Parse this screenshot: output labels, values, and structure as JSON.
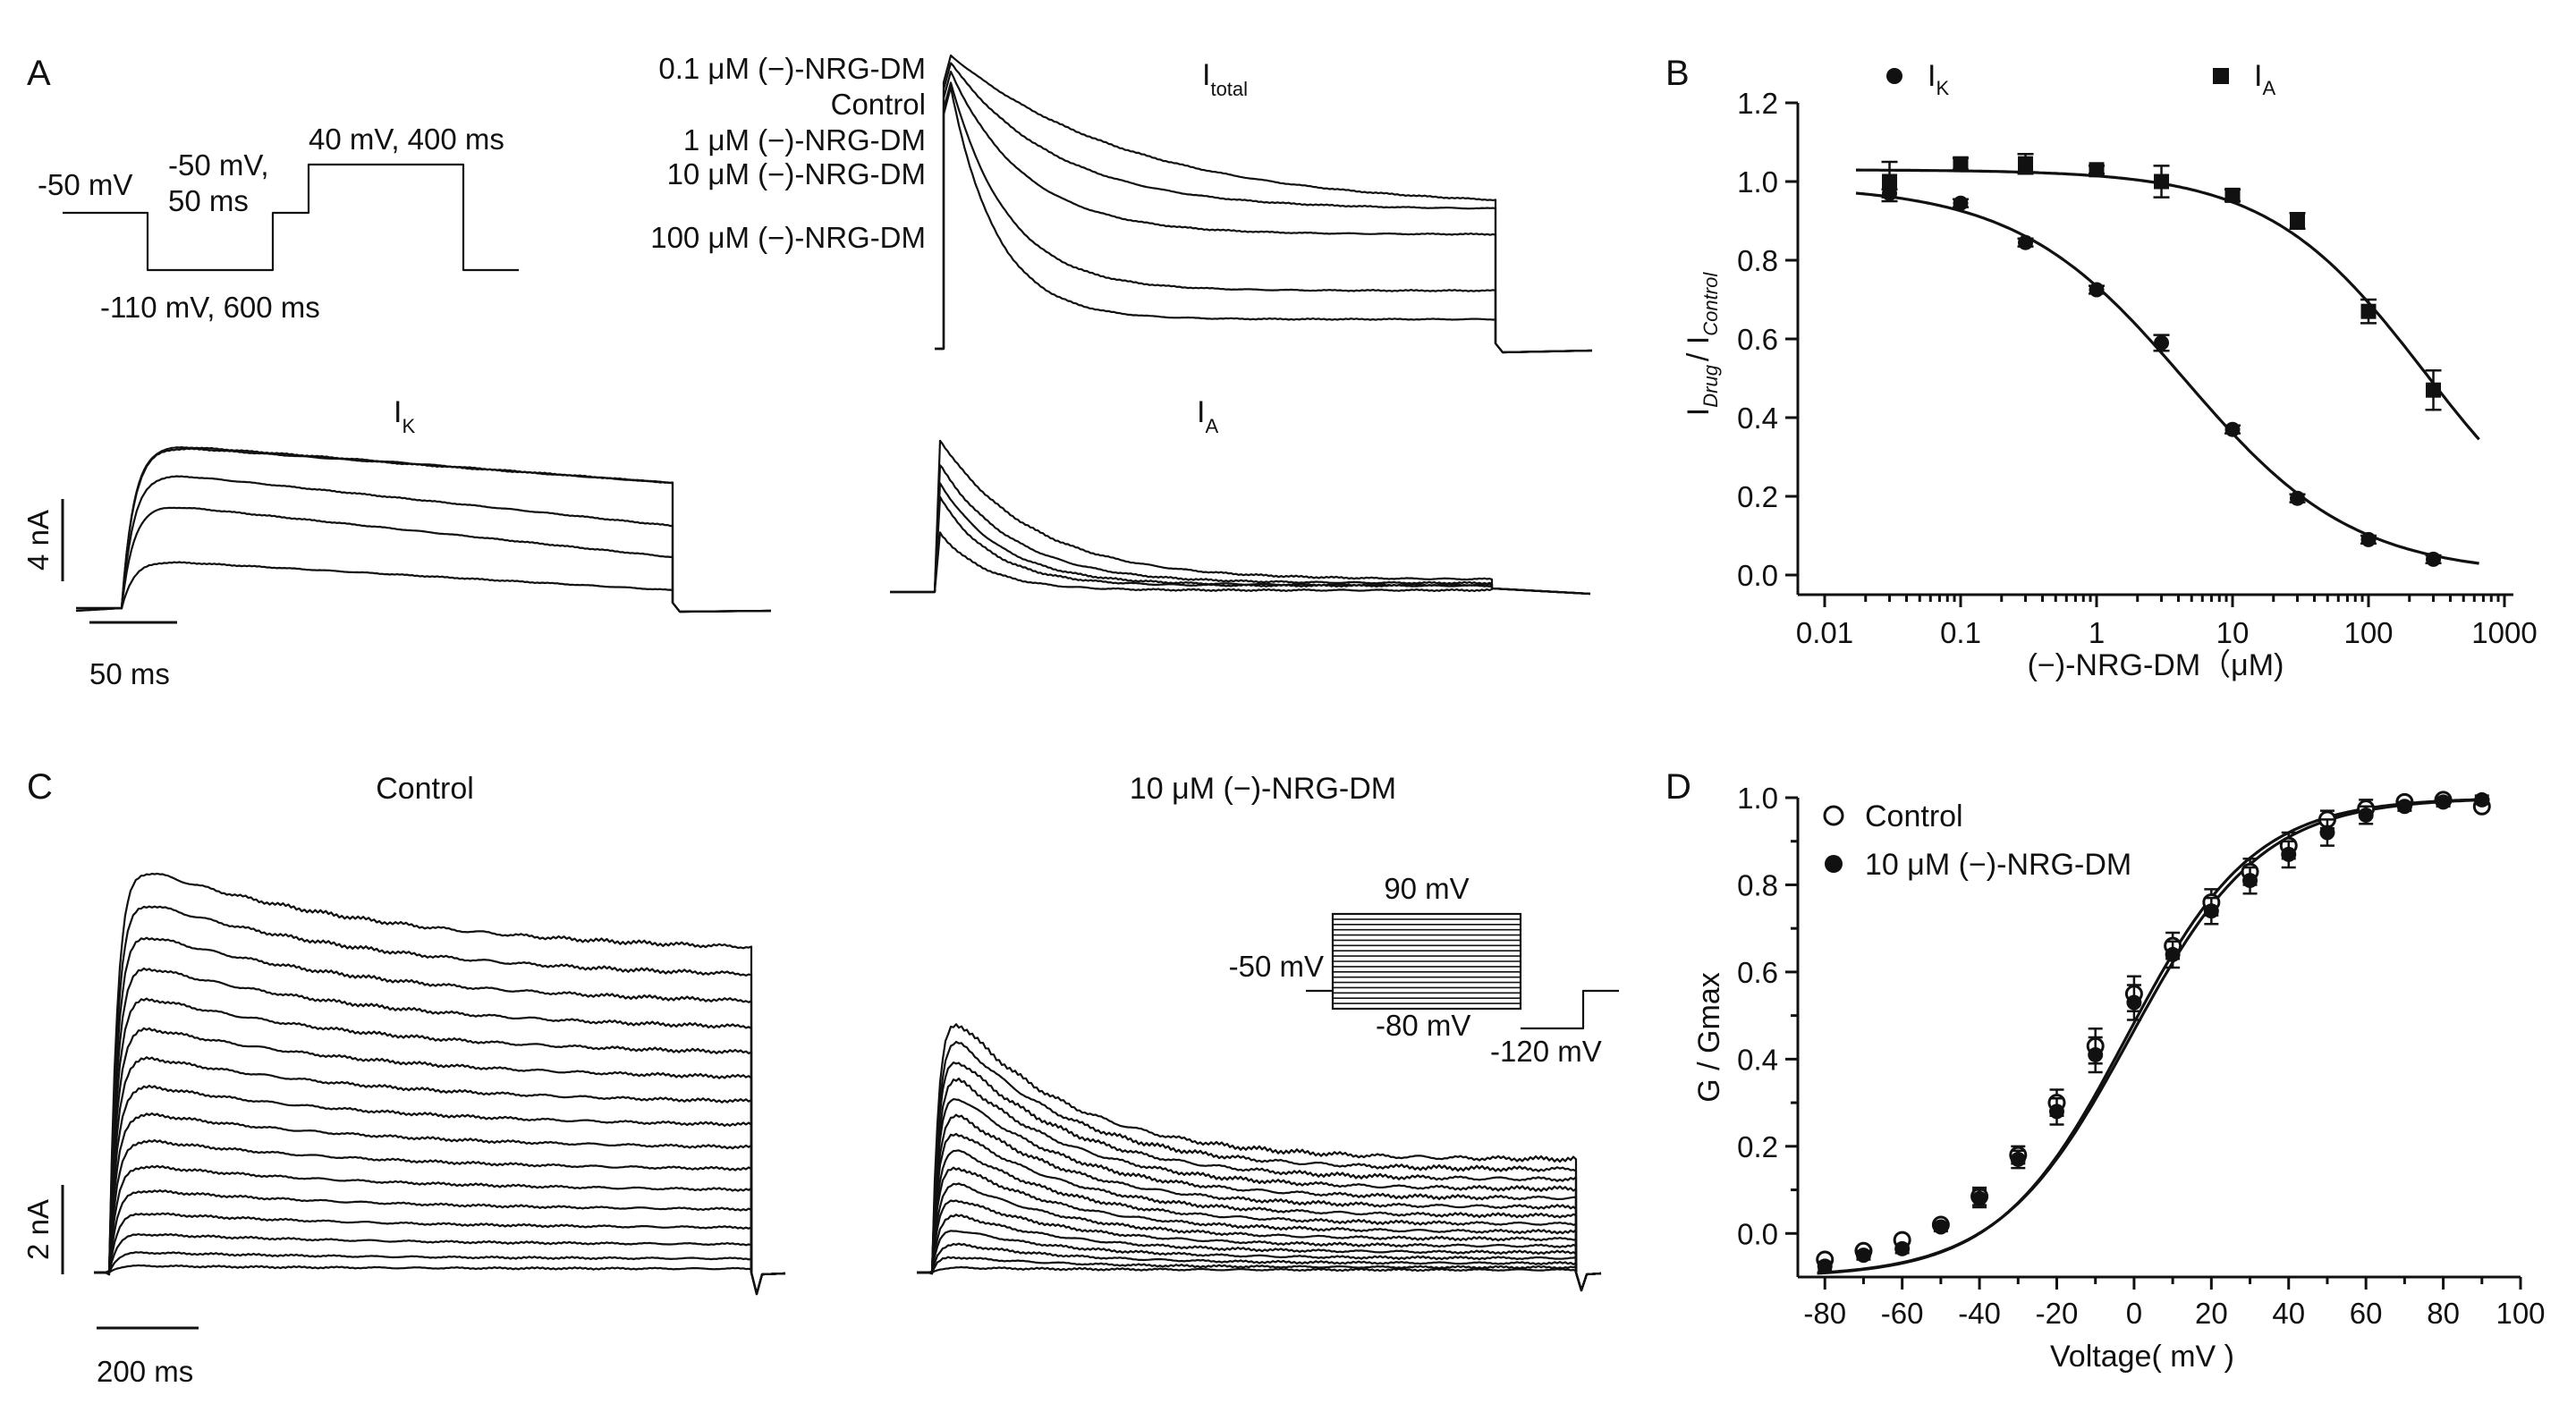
{
  "figure": {
    "panels": {
      "a": "A",
      "b": "B",
      "c": "C",
      "d": "D"
    },
    "panel_a": {
      "protocol": {
        "hold_label": "-50 mV",
        "pre_label_line1": "-50 mV,",
        "pre_label_line2": "50 ms",
        "test_label": "40 mV,  400 ms",
        "hyper_label": "-110 mV, 600 ms"
      },
      "itotal_title": {
        "main": "I",
        "sub": "total"
      },
      "ik_title": {
        "main": "I",
        "sub": "K"
      },
      "ia_title": {
        "main": "I",
        "sub": "A"
      },
      "trace_labels": [
        "0.1 μM (−)-NRG-DM",
        "Control",
        "1 μM (−)-NRG-DM",
        "10 μM (−)-NRG-DM",
        "100 μM (−)-NRG-DM"
      ],
      "scale_current": "4 nA",
      "scale_time": "50 ms"
    },
    "panel_c": {
      "control_title": "Control",
      "drug_title": "10 μM (−)-NRG-DM",
      "inset": {
        "top_label": "90 mV",
        "hold_label": "-50 mV",
        "bottom_label": "-80 mV",
        "tail_label": "-120 mV"
      },
      "scale_current": "2 nA",
      "scale_time": "200 ms"
    }
  },
  "chart_data": [
    {
      "panel": "B",
      "type": "scatter",
      "xscale": "log",
      "xlabel": "(−)-NRG-DM（μM)",
      "ylabel": {
        "part1": "I",
        "sub1": "Drug",
        "part2": "/ I",
        "sub2": "Control"
      },
      "xlim": [
        0.01,
        1000
      ],
      "ylim": [
        -0.05,
        1.2
      ],
      "xticks": [
        "0.01",
        "0.1",
        "1",
        "10",
        "100",
        "1000"
      ],
      "xtick_values": [
        0.01,
        0.1,
        1,
        10,
        100,
        1000
      ],
      "yticks": [
        "0.0",
        "0.2",
        "0.4",
        "0.6",
        "0.8",
        "1.0",
        "1.2"
      ],
      "ytick_values": [
        0.0,
        0.2,
        0.4,
        0.6,
        0.8,
        1.0,
        1.2
      ],
      "legend": [
        {
          "marker": "circle",
          "main": "I",
          "sub": "K"
        },
        {
          "marker": "square",
          "main": "I",
          "sub": "A"
        }
      ],
      "series": [
        {
          "name": "IK",
          "marker": "circle",
          "x": [
            0.03,
            0.1,
            0.3,
            1,
            3,
            10,
            30,
            100,
            300
          ],
          "y": [
            0.97,
            0.945,
            0.845,
            0.725,
            0.59,
            0.37,
            0.195,
            0.09,
            0.04
          ],
          "err": [
            0.01,
            0.01,
            0.01,
            0.01,
            0.02,
            0.01,
            0.01,
            0.01,
            0.01
          ]
        },
        {
          "name": "IA",
          "marker": "square",
          "x": [
            0.03,
            0.1,
            0.3,
            1,
            3,
            10,
            30,
            100,
            300
          ],
          "y": [
            1.0,
            1.045,
            1.045,
            1.03,
            1.0,
            0.965,
            0.9,
            0.67,
            0.47
          ],
          "err": [
            0.05,
            0.015,
            0.025,
            0.01,
            0.04,
            0.015,
            0.02,
            0.03,
            0.05
          ]
        }
      ],
      "fits": [
        {
          "name": "IK fit",
          "top": 0.99,
          "bottom": 0.0,
          "ic50": 4.5,
          "hill": 0.7
        },
        {
          "name": "IA fit",
          "top": 1.03,
          "bottom": 0.0,
          "ic50": 260,
          "hill": 0.75
        }
      ]
    },
    {
      "panel": "D",
      "type": "scatter",
      "xlabel": "Voltage( mV )",
      "ylabel": "G / Gmax",
      "xlim": [
        -87,
        100
      ],
      "ylim": [
        -0.1,
        1.0
      ],
      "xticks": [
        "-80",
        "-60",
        "-40",
        "-20",
        "0",
        "20",
        "40",
        "60",
        "80",
        "100"
      ],
      "xtick_values": [
        -80,
        -60,
        -40,
        -20,
        0,
        20,
        40,
        60,
        80,
        100
      ],
      "yticks": [
        "0.0",
        "0.2",
        "0.4",
        "0.6",
        "0.8",
        "1.0"
      ],
      "ytick_values": [
        0.0,
        0.2,
        0.4,
        0.6,
        0.8,
        1.0
      ],
      "legend": [
        "Control",
        "10 μM (−)-NRG-DM"
      ],
      "series": [
        {
          "name": "Control",
          "marker": "open-circle",
          "x": [
            -80,
            -70,
            -60,
            -50,
            -40,
            -30,
            -20,
            -10,
            0,
            10,
            20,
            30,
            40,
            50,
            60,
            70,
            80,
            90
          ],
          "y": [
            -0.06,
            -0.04,
            -0.015,
            0.02,
            0.085,
            0.18,
            0.3,
            0.43,
            0.55,
            0.66,
            0.76,
            0.83,
            0.89,
            0.95,
            0.975,
            0.99,
            0.995,
            0.98
          ],
          "err": [
            0.01,
            0.01,
            0.01,
            0.01,
            0.02,
            0.02,
            0.03,
            0.04,
            0.04,
            0.03,
            0.03,
            0.03,
            0.03,
            0.02,
            0.02,
            0.01,
            0.01,
            0.01
          ]
        },
        {
          "name": "10 μM (−)-NRG-DM",
          "marker": "filled-circle",
          "x": [
            -80,
            -70,
            -60,
            -50,
            -40,
            -30,
            -20,
            -10,
            0,
            10,
            20,
            30,
            40,
            50,
            60,
            70,
            80,
            90
          ],
          "y": [
            -0.075,
            -0.05,
            -0.035,
            0.015,
            0.08,
            0.17,
            0.28,
            0.41,
            0.53,
            0.64,
            0.74,
            0.81,
            0.87,
            0.92,
            0.96,
            0.98,
            0.99,
            0.995
          ],
          "err": [
            0.01,
            0.01,
            0.01,
            0.01,
            0.02,
            0.02,
            0.03,
            0.04,
            0.04,
            0.03,
            0.03,
            0.03,
            0.03,
            0.03,
            0.02,
            0.01,
            0.01,
            0.01
          ]
        }
      ],
      "fits": [
        {
          "name": "Control fit",
          "bottom": -0.1,
          "top": 1.0,
          "v_half": -2,
          "slope": 16.5
        },
        {
          "name": "Drug fit",
          "bottom": -0.1,
          "top": 1.0,
          "v_half": -1,
          "slope": 17
        }
      ]
    }
  ]
}
